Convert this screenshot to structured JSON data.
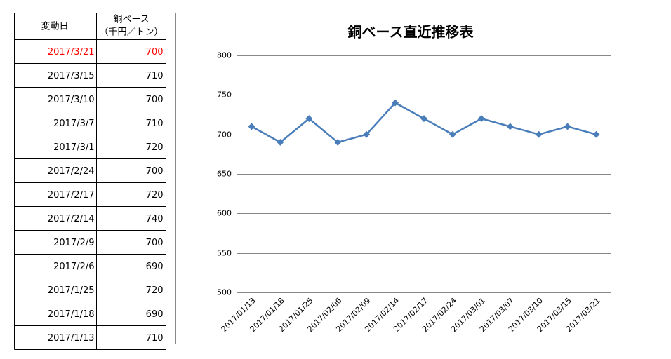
{
  "table": {
    "header": {
      "date": "変動日",
      "price": [
        "銅ベース",
        "（千円／トン）"
      ]
    },
    "rows": [
      [
        "2017/3/21",
        "700"
      ],
      [
        "2017/3/15",
        "710"
      ],
      [
        "2017/3/10",
        "700"
      ],
      [
        "2017/3/7",
        "710"
      ],
      [
        "2017/3/1",
        "720"
      ],
      [
        "2017/2/24",
        "700"
      ],
      [
        "2017/2/17",
        "720"
      ],
      [
        "2017/2/14",
        "740"
      ],
      [
        "2017/2/9",
        "700"
      ],
      [
        "2017/2/6",
        "690"
      ],
      [
        "2017/1/25",
        "720"
      ],
      [
        "2017/1/18",
        "690"
      ],
      [
        "2017/1/13",
        "710"
      ]
    ],
    "highlight_row": 0,
    "highlight_color": "#ff0000"
  },
  "chart_data": {
    "type": "line",
    "title": "銅ベース直近推移表",
    "categories": [
      "2017/01/13",
      "2017/01/18",
      "2017/01/25",
      "2017/02/06",
      "2017/02/09",
      "2017/02/14",
      "2017/02/17",
      "2017/02/24",
      "2017/03/01",
      "2017/03/07",
      "2017/03/10",
      "2017/03/15",
      "2017/03/21"
    ],
    "values": [
      710,
      690,
      720,
      690,
      700,
      740,
      720,
      700,
      720,
      710,
      700,
      710,
      700
    ],
    "color": "#4a7ebb",
    "ylim": [
      500,
      800
    ],
    "yticks": [
      500,
      550,
      600,
      650,
      700,
      750,
      800
    ],
    "grid": true
  }
}
